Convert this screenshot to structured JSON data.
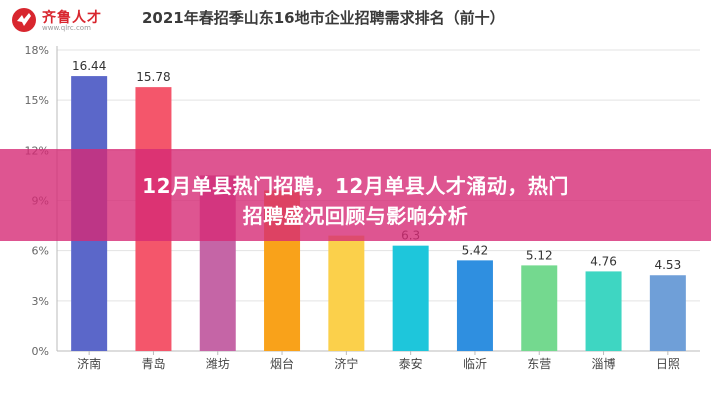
{
  "brand": {
    "name": "齐鲁人才",
    "url": "www.qlrc.com",
    "logo_color": "#d8262e"
  },
  "banner": {
    "line1": "12月单县热门招聘，12月单县人才涌动，热门",
    "line2": "招聘盛况回顾与影响分析",
    "color": "#d62a76"
  },
  "chart_data": {
    "type": "bar",
    "title": "2021年春招季山东16地市企业招聘需求排名（前十）",
    "categories": [
      "济南",
      "青岛",
      "潍坊",
      "烟台",
      "济宁",
      "泰安",
      "临沂",
      "东营",
      "淄博",
      "日照"
    ],
    "values": [
      16.44,
      15.78,
      10.5,
      9.6,
      6.9,
      6.3,
      5.42,
      5.12,
      4.76,
      4.53
    ],
    "value_labels": [
      "16.44",
      "15.78",
      "",
      "",
      "",
      "6.3",
      "5.42",
      "5.12",
      "4.76",
      "4.53"
    ],
    "colors": [
      "#5b67c9",
      "#f4566b",
      "#c565a6",
      "#f9a21a",
      "#fbd04b",
      "#1ec6db",
      "#2f8fe0",
      "#74d98f",
      "#3ed6c2",
      "#6f9fd8"
    ],
    "yticks": [
      "0%",
      "3%",
      "6%",
      "9%",
      "12%",
      "15%",
      "18%"
    ],
    "ylim": [
      0,
      18
    ],
    "grid": true,
    "xlabel": "",
    "ylabel": ""
  }
}
